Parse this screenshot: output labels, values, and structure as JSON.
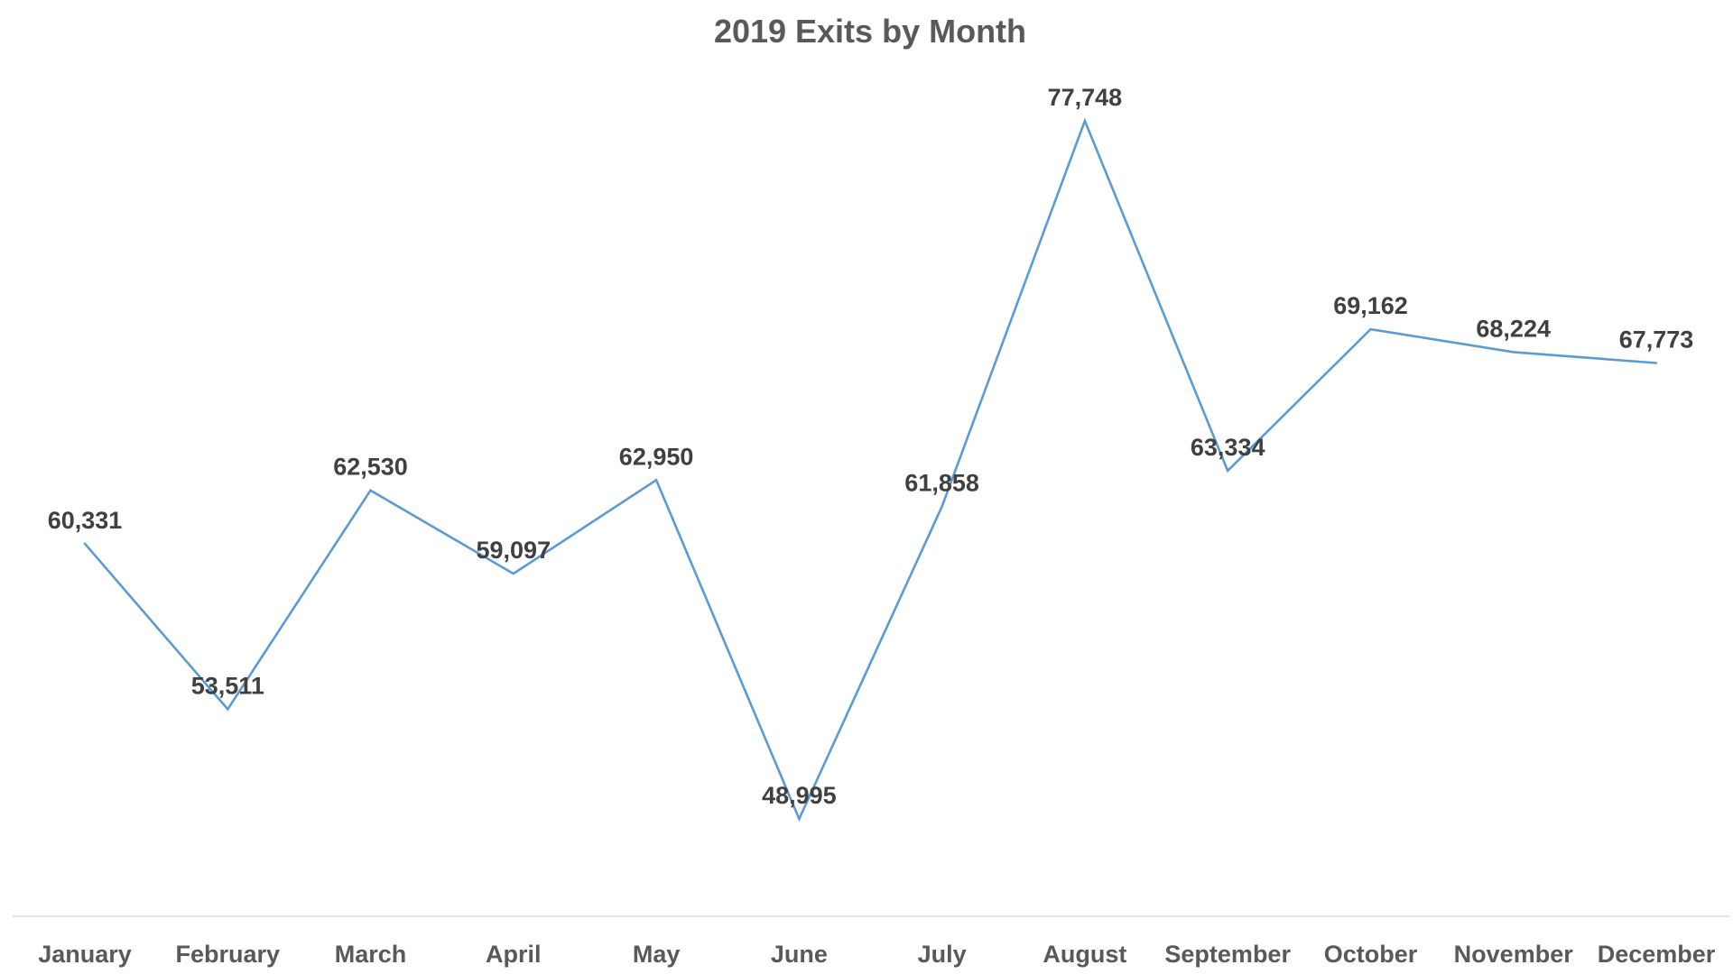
{
  "chart_data": {
    "type": "line",
    "title": "2019 Exits by Month",
    "xlabel": "",
    "ylabel": "",
    "categories": [
      "January",
      "February",
      "March",
      "April",
      "May",
      "June",
      "July",
      "August",
      "September",
      "October",
      "November",
      "December"
    ],
    "series": [
      {
        "name": "Exits",
        "values": [
          60331,
          53511,
          62530,
          59097,
          62950,
          48995,
          61858,
          77748,
          63334,
          69162,
          68224,
          67773
        ],
        "labels": [
          "60,331",
          "53,511",
          "62,530",
          "59,097",
          "62,950",
          "48,995",
          "61,858",
          "77,748",
          "63,334",
          "69,162",
          "68,224",
          "67,773"
        ]
      }
    ],
    "ylim": [
      45000,
      80000
    ],
    "grid": false,
    "legend": "none",
    "colors": {
      "line": "#5b9bd5",
      "axis": "#d9d9d9"
    }
  }
}
